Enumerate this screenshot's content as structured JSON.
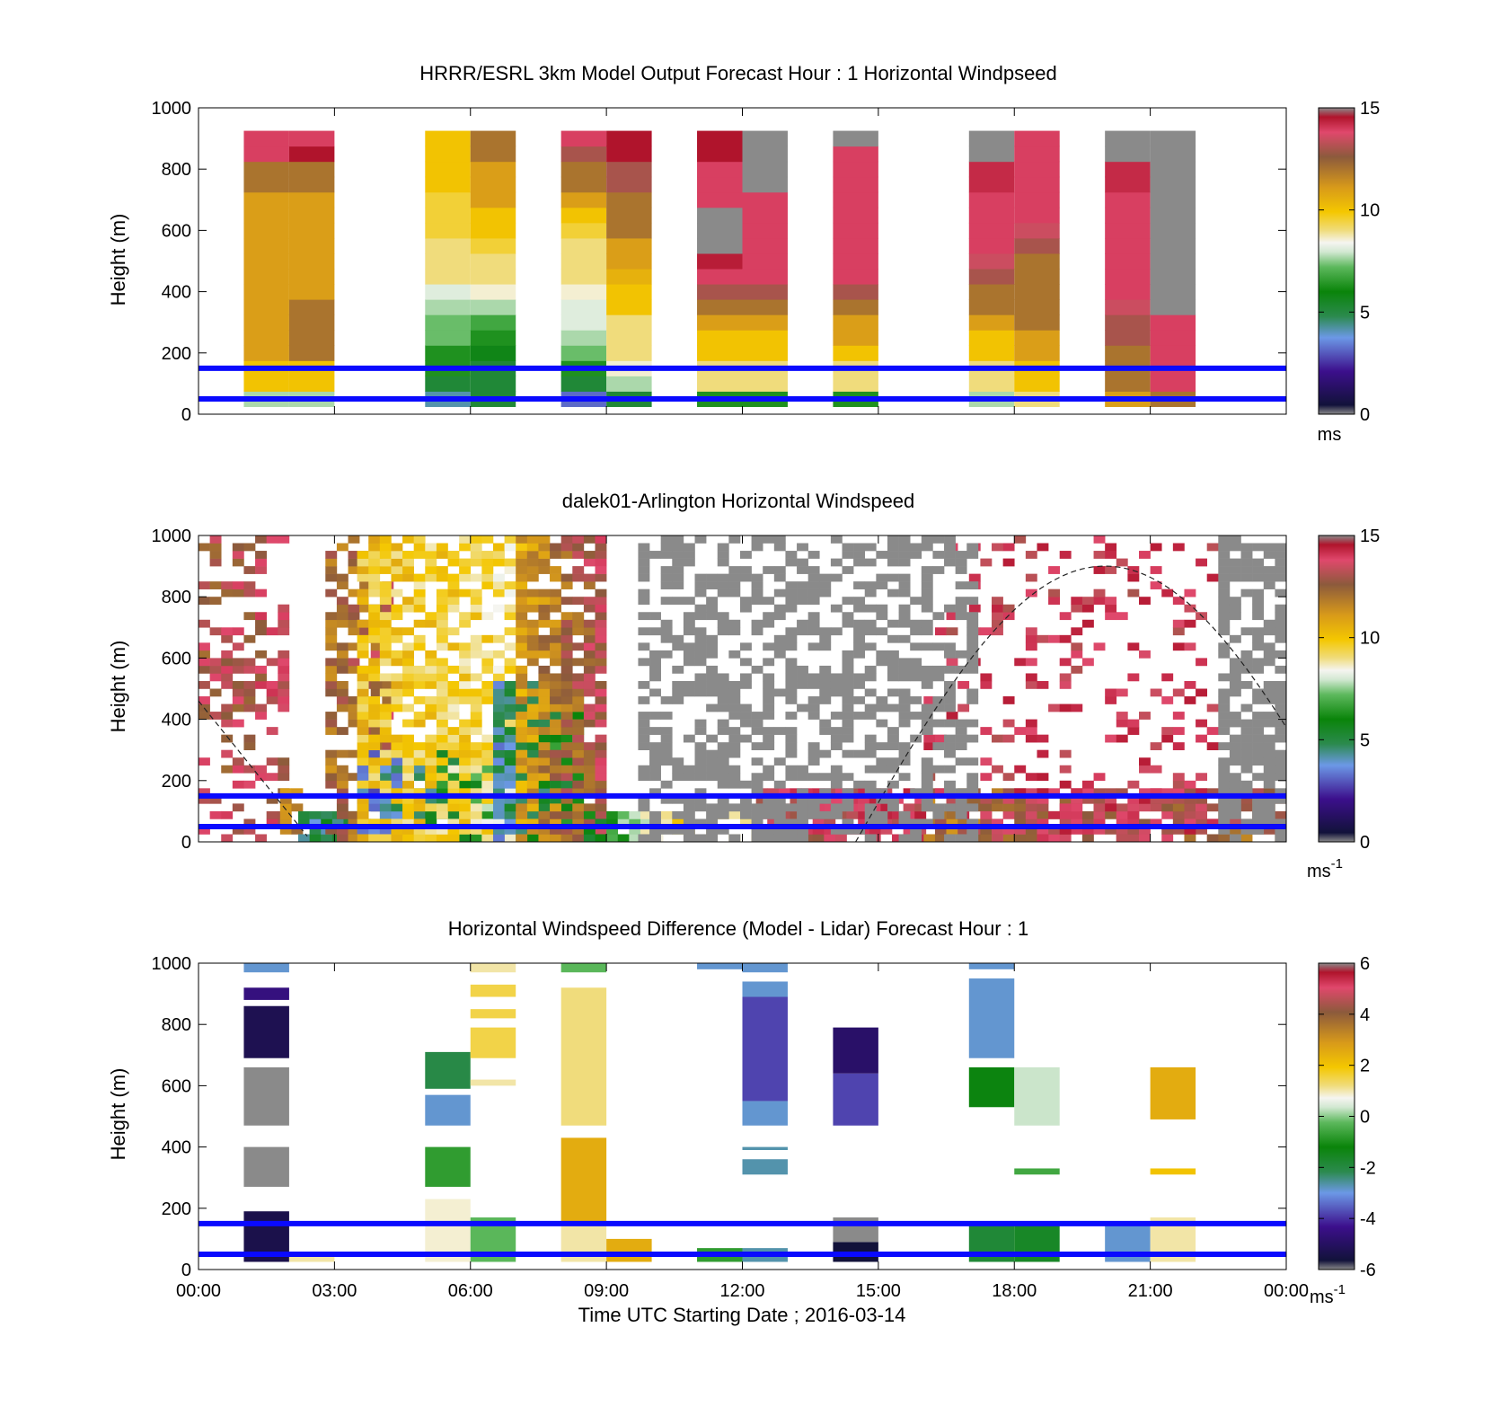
{
  "chart_data": [
    {
      "type": "heatmap",
      "title": "HRRR/ESRL 3km Model Output   Forecast Hour : 1 Horizontal Windpseed",
      "ylabel": "Height (m)",
      "yticks": [
        "0",
        "200",
        "400",
        "600",
        "800",
        "1000"
      ],
      "ylim": [
        0,
        1000
      ],
      "xlim_hours": [
        0,
        24
      ],
      "colorbar": {
        "ticks": [
          "0",
          "5",
          "10",
          "15"
        ],
        "range": [
          0,
          15
        ],
        "unit": "ms"
      },
      "reference_lines_m": [
        50,
        150
      ],
      "columns": [
        {
          "t": 1.5,
          "z0": 25,
          "dz": 50,
          "v": [
            7.5,
            10,
            10,
            11,
            11,
            11,
            11,
            11,
            11,
            11,
            11,
            11,
            11,
            11,
            12,
            12,
            14,
            14
          ]
        },
        {
          "t": 2.5,
          "z0": 25,
          "dz": 50,
          "v": [
            7.5,
            10,
            10,
            12,
            12,
            12,
            12,
            11,
            11,
            11,
            11,
            11,
            11,
            11,
            12,
            12,
            15,
            14
          ]
        },
        {
          "t": 5.5,
          "z0": 25,
          "dz": 50,
          "v": [
            4,
            5,
            6,
            6,
            7,
            7,
            7.5,
            8,
            9,
            9,
            9,
            9.5,
            9.5,
            9.5,
            10,
            10,
            10,
            10
          ]
        },
        {
          "t": 6.5,
          "z0": 25,
          "dz": 50,
          "v": [
            5,
            5,
            5,
            5.5,
            6,
            6.5,
            7.5,
            8.5,
            9,
            9,
            9.5,
            10,
            10,
            11,
            11,
            11,
            12,
            12
          ]
        },
        {
          "t": 8.5,
          "z0": 25,
          "dz": 50,
          "v": [
            3,
            5,
            6,
            7,
            7.5,
            8,
            8,
            8.5,
            9,
            9,
            9,
            9.5,
            10,
            11,
            12,
            12,
            13,
            14
          ]
        },
        {
          "t": 9.5,
          "z0": 25,
          "dz": 50,
          "v": [
            5,
            7.5,
            8.5,
            9,
            9,
            9,
            10,
            10,
            10.5,
            11,
            11,
            12,
            12,
            12,
            13,
            13,
            15,
            15
          ]
        },
        {
          "t": 11.5,
          "z0": 25,
          "dz": 50,
          "v": [
            6,
            9,
            9,
            10,
            10,
            11,
            12,
            13,
            14,
            14.8,
            -1,
            -1,
            -1,
            14,
            14,
            14,
            15,
            15
          ]
        },
        {
          "t": 12.5,
          "z0": 25,
          "dz": 50,
          "v": [
            6,
            9,
            9,
            10,
            10,
            11,
            12,
            13,
            14,
            14,
            14,
            14,
            14,
            14,
            -1,
            -1,
            -1,
            -1
          ]
        },
        {
          "t": 14.5,
          "z0": 25,
          "dz": 50,
          "v": [
            6,
            9,
            9,
            10,
            11,
            11,
            12,
            13,
            14,
            14,
            14,
            14,
            14,
            14,
            14,
            14,
            14,
            -1
          ]
        },
        {
          "t": 17.5,
          "z0": 25,
          "dz": 50,
          "v": [
            7.5,
            9,
            9,
            10,
            10,
            11,
            12,
            12,
            13,
            13.5,
            14,
            14,
            14,
            14,
            14.5,
            14.5,
            -1,
            -1
          ]
        },
        {
          "t": 18.5,
          "z0": 25,
          "dz": 50,
          "v": [
            9,
            10,
            10,
            11,
            11,
            12,
            12,
            12,
            12,
            12,
            13,
            13.5,
            14,
            14,
            14,
            14,
            14,
            14
          ]
        },
        {
          "t": 20.5,
          "z0": 25,
          "dz": 50,
          "v": [
            11,
            12,
            12,
            12,
            13,
            13,
            13.5,
            14,
            14,
            14,
            14,
            14,
            14,
            14,
            14.5,
            14.5,
            -1,
            -1
          ]
        },
        {
          "t": 21.5,
          "z0": 25,
          "dz": 50,
          "v": [
            12,
            14,
            14,
            14,
            14,
            14,
            -1,
            -1,
            -1,
            -1,
            -1,
            -1,
            -1,
            -1,
            -1,
            -1,
            -1,
            -1
          ]
        }
      ]
    },
    {
      "type": "heatmap",
      "title": "dalek01-Arlington  Horizontal Windspeed",
      "ylabel": "Height (m)",
      "yticks": [
        "0",
        "200",
        "400",
        "600",
        "800",
        "1000"
      ],
      "ylim": [
        0,
        1000
      ],
      "xlim_hours": [
        0,
        24
      ],
      "colorbar": {
        "ticks": [
          "0",
          "5",
          "10",
          "15"
        ],
        "range": [
          0,
          15
        ],
        "unit": "ms",
        "unit_superscript": "-1"
      },
      "reference_lines_m": [
        50,
        150
      ],
      "dashed_curve": "sun elevation trace",
      "zones": [
        {
          "t0": 0.0,
          "t1": 1.8,
          "v0": 13,
          "v1": 13.5,
          "zmax": 1000,
          "sparse": 0.6
        },
        {
          "t0": 1.8,
          "t1": 2.2,
          "v0": 12,
          "v1": 12,
          "zmax": 160,
          "sparse": 0.2
        },
        {
          "t0": 2.2,
          "t1": 3.5,
          "v0": 4,
          "v1": 5.5,
          "zmax": 90,
          "sparse": 0.15
        },
        {
          "t0": 2.8,
          "t1": 4.3,
          "v0": 12,
          "v1": 13,
          "zmax": 1000,
          "sparse": 0.45
        },
        {
          "t0": 3.5,
          "t1": 6.5,
          "v0": 3,
          "v1": 7,
          "zmax": 280,
          "sparse": 0.05
        },
        {
          "t0": 3.5,
          "t1": 7.2,
          "v0": 10,
          "v1": 9,
          "zmax": 1000,
          "sparse": 0.3
        },
        {
          "t0": 6.5,
          "t1": 8.5,
          "v0": 4,
          "v1": 6.5,
          "zmax": 520,
          "sparse": 0.05
        },
        {
          "t0": 7.0,
          "t1": 9.0,
          "v0": 11,
          "v1": 13.5,
          "zmax": 1000,
          "sparse": 0.25
        },
        {
          "t0": 8.5,
          "t1": 10.2,
          "v0": 5,
          "v1": 9,
          "zmax": 100,
          "sparse": 0.3
        },
        {
          "t0": 10.2,
          "t1": 12.3,
          "v0": 9,
          "v1": 10,
          "zmax": 90,
          "sparse": 0.6
        },
        {
          "t0": 12.3,
          "t1": 16.0,
          "v0": 13.5,
          "v1": 14,
          "zmax": 160,
          "sparse": 0.15
        },
        {
          "t0": 16.0,
          "t1": 19.5,
          "v0": 12,
          "v1": 13.5,
          "zmax": 160,
          "sparse": 0.2
        },
        {
          "t0": 19.5,
          "t1": 24.0,
          "v0": 13.5,
          "v1": 12,
          "zmax": 160,
          "sparse": 0.25
        },
        {
          "t0": 16.0,
          "t1": 22.5,
          "v0": 14,
          "v1": 14,
          "zmax": 1000,
          "sparse": 0.8
        },
        {
          "t0": 9.7,
          "t1": 17.0,
          "v0": -1,
          "v1": -1,
          "zmax": 1000,
          "sparse": 0.45
        },
        {
          "t0": 22.5,
          "t1": 24.0,
          "v0": -1,
          "v1": -1,
          "zmax": 1000,
          "sparse": 0.3
        }
      ]
    },
    {
      "type": "heatmap",
      "title": "Horizontal Windspeed Difference (Model - Lidar) Forecast Hour : 1",
      "ylabel": "Height (m)",
      "xlabel": "Time UTC  Starting Date ; 2016-03-14",
      "xticks": [
        "00:00",
        "03:00",
        "06:00",
        "09:00",
        "12:00",
        "15:00",
        "18:00",
        "21:00",
        "00:00"
      ],
      "yticks": [
        "0",
        "200",
        "400",
        "600",
        "800",
        "1000"
      ],
      "ylim": [
        0,
        1000
      ],
      "xlim_hours": [
        0,
        24
      ],
      "colorbar": {
        "ticks": [
          "-6",
          "-4",
          "-2",
          "0",
          "2",
          "4",
          "6"
        ],
        "range": [
          -6,
          6
        ],
        "unit": "ms",
        "unit_superscript": "-1"
      },
      "reference_lines_m": [
        50,
        150
      ],
      "segments": [
        {
          "t": 1.5,
          "z0": 25,
          "z1": 190,
          "v": -5.7
        },
        {
          "t": 1.5,
          "z0": 270,
          "z1": 400,
          "v": 6.5
        },
        {
          "t": 1.5,
          "z0": 470,
          "z1": 660,
          "v": 6.5
        },
        {
          "t": 1.5,
          "z0": 690,
          "z1": 860,
          "v": -5.6
        },
        {
          "t": 1.5,
          "z0": 880,
          "z1": 920,
          "v": -4.8
        },
        {
          "t": 1.5,
          "z0": 970,
          "z1": 1000,
          "v": -3
        },
        {
          "t": 2.5,
          "z0": 25,
          "z1": 50,
          "v": 1
        },
        {
          "t": 5.5,
          "z0": 25,
          "z1": 230,
          "v": 0.8
        },
        {
          "t": 5.5,
          "z0": 270,
          "z1": 400,
          "v": -1
        },
        {
          "t": 5.5,
          "z0": 470,
          "z1": 570,
          "v": -3
        },
        {
          "t": 5.5,
          "z0": 590,
          "z1": 710,
          "v": -2.2
        },
        {
          "t": 6.5,
          "z0": 25,
          "z1": 170,
          "v": -0.5
        },
        {
          "t": 6.5,
          "z0": 600,
          "z1": 620,
          "v": 1
        },
        {
          "t": 6.5,
          "z0": 690,
          "z1": 790,
          "v": 1.5
        },
        {
          "t": 6.5,
          "z0": 820,
          "z1": 850,
          "v": 1.5
        },
        {
          "t": 6.5,
          "z0": 890,
          "z1": 930,
          "v": 1.5
        },
        {
          "t": 6.5,
          "z0": 970,
          "z1": 1000,
          "v": 1
        },
        {
          "t": 8.5,
          "z0": 25,
          "z1": 150,
          "v": 1
        },
        {
          "t": 8.5,
          "z0": 150,
          "z1": 430,
          "v": 2.5
        },
        {
          "t": 8.5,
          "z0": 470,
          "z1": 920,
          "v": 1.2
        },
        {
          "t": 8.5,
          "z0": 970,
          "z1": 1000,
          "v": -0.5
        },
        {
          "t": 9.5,
          "z0": 25,
          "z1": 100,
          "v": 2.5
        },
        {
          "t": 11.5,
          "z0": 25,
          "z1": 70,
          "v": -1
        },
        {
          "t": 11.5,
          "z0": 980,
          "z1": 1000,
          "v": -3
        },
        {
          "t": 12.5,
          "z0": 25,
          "z1": 70,
          "v": -2.8
        },
        {
          "t": 12.5,
          "z0": 310,
          "z1": 360,
          "v": -2.8
        },
        {
          "t": 12.5,
          "z0": 390,
          "z1": 400,
          "v": -2.8
        },
        {
          "t": 12.5,
          "z0": 470,
          "z1": 550,
          "v": -3
        },
        {
          "t": 12.5,
          "z0": 550,
          "z1": 890,
          "v": -4
        },
        {
          "t": 12.5,
          "z0": 890,
          "z1": 940,
          "v": -3
        },
        {
          "t": 12.5,
          "z0": 970,
          "z1": 1000,
          "v": -3
        },
        {
          "t": 14.5,
          "z0": 25,
          "z1": 90,
          "v": -6
        },
        {
          "t": 14.5,
          "z0": 90,
          "z1": 170,
          "v": 6.5
        },
        {
          "t": 14.5,
          "z0": 470,
          "z1": 640,
          "v": -4
        },
        {
          "t": 14.5,
          "z0": 640,
          "z1": 790,
          "v": -5.2
        },
        {
          "t": 17.5,
          "z0": 25,
          "z1": 150,
          "v": -2
        },
        {
          "t": 17.5,
          "z0": 530,
          "z1": 660,
          "v": -1.5
        },
        {
          "t": 17.5,
          "z0": 690,
          "z1": 950,
          "v": -3
        },
        {
          "t": 17.5,
          "z0": 980,
          "z1": 1000,
          "v": -3
        },
        {
          "t": 18.5,
          "z0": 25,
          "z1": 150,
          "v": -1.8
        },
        {
          "t": 18.5,
          "z0": 310,
          "z1": 330,
          "v": -0.8
        },
        {
          "t": 18.5,
          "z0": 470,
          "z1": 660,
          "v": 0.2
        },
        {
          "t": 20.5,
          "z0": 25,
          "z1": 150,
          "v": -3
        },
        {
          "t": 21.5,
          "z0": 25,
          "z1": 170,
          "v": 1
        },
        {
          "t": 21.5,
          "z0": 310,
          "z1": 330,
          "v": 2
        },
        {
          "t": 21.5,
          "z0": 490,
          "z1": 660,
          "v": 2.5
        }
      ]
    }
  ]
}
